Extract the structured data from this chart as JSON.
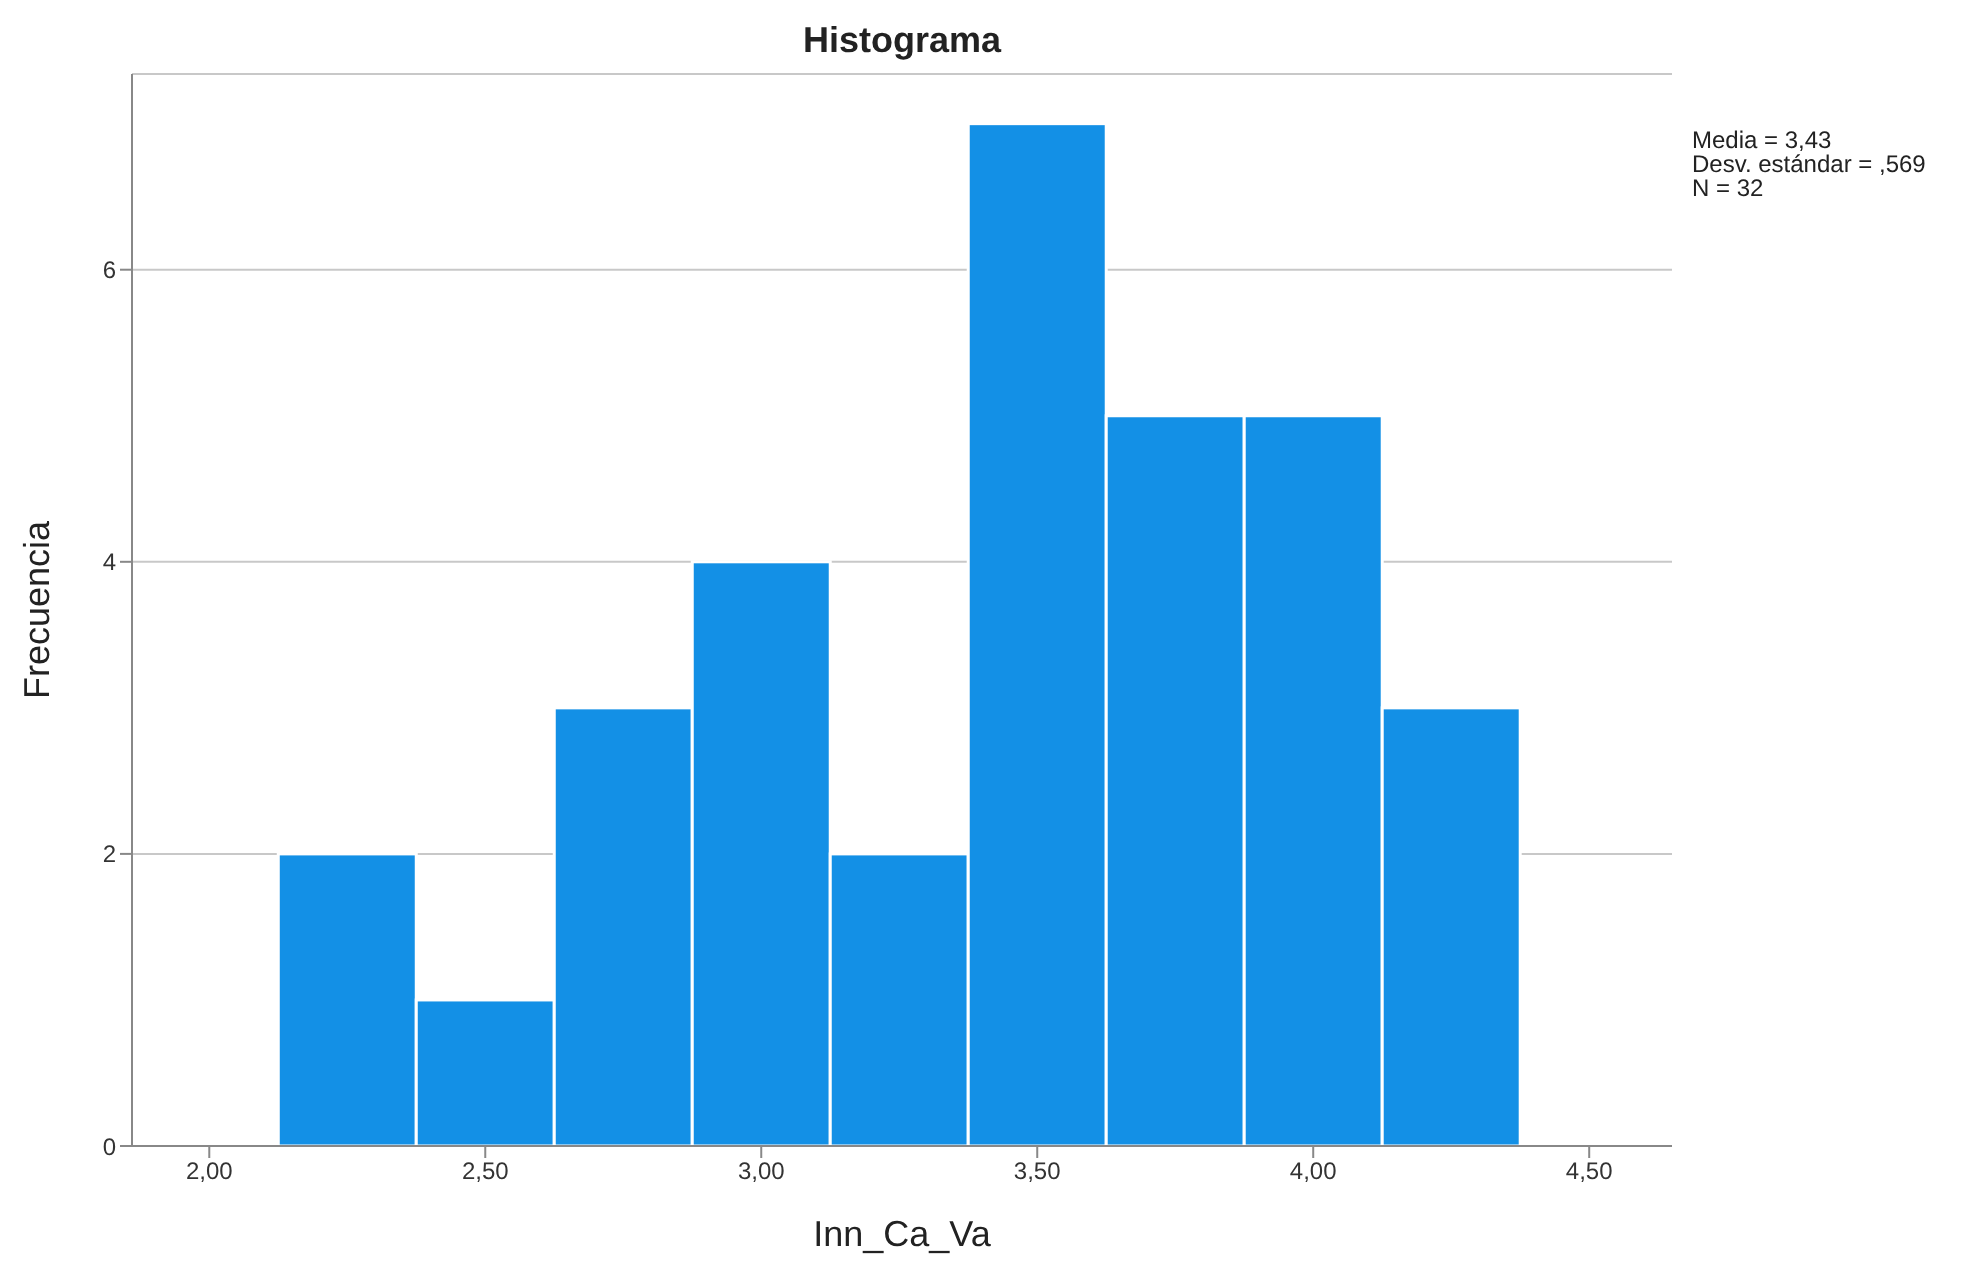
{
  "chart_data": {
    "type": "histogram",
    "title": "Histograma",
    "xlabel": "Inn_Ca_Va",
    "ylabel": "Frecuencia",
    "bins": [
      2.125,
      2.375,
      2.625,
      2.875,
      3.125,
      3.375,
      3.625,
      3.875,
      4.125,
      4.375
    ],
    "values": [
      2,
      1,
      3,
      4,
      2,
      7,
      5,
      5,
      3
    ],
    "color": "#1390e6",
    "xlim": [
      1.86,
      4.65
    ],
    "xticks": [
      {
        "value": 2,
        "label": "2,00"
      },
      {
        "value": 2.5,
        "label": "2,50"
      },
      {
        "value": 3,
        "label": "3,00"
      },
      {
        "value": 3.5,
        "label": "3,50"
      },
      {
        "value": 4,
        "label": "4,00"
      },
      {
        "value": 4.5,
        "label": "4,50"
      }
    ],
    "ylim": [
      0,
      7.34
    ],
    "yticks": [
      0,
      2,
      4,
      6
    ],
    "grid": "y",
    "annotations": [
      "Media = 3,43",
      "Desv. estándar = ,569",
      "N = 32"
    ]
  }
}
